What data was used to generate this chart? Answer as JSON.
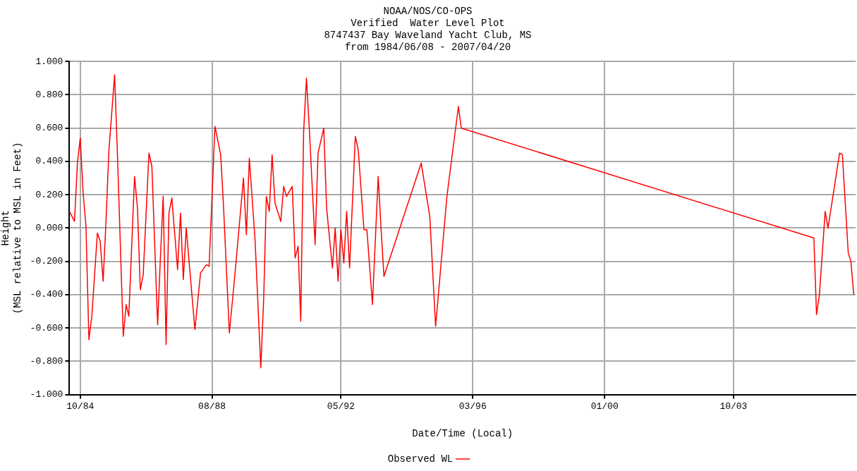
{
  "chart_data": {
    "type": "line",
    "title": "NOAA/NOS/CO-OPS\nVerified  Water Level Plot\n8747437 Bay Waveland Yacht Club, MS",
    "subtitle": "from 1984/06/08 - 2007/04/20",
    "xlabel": "Date/Time (Local)",
    "ylabel": "Height\n(MSL relative to MSL in Feet)",
    "x": [
      "1984-06-08",
      "1984-08",
      "1984-09",
      "1984-10",
      "1984-11",
      "1984-12",
      "1985-01",
      "1985-02",
      "1985-04",
      "1985-05",
      "1985-06",
      "1985-07",
      "1985-08",
      "1985-10",
      "1985-11",
      "1986-01",
      "1986-02",
      "1986-03",
      "1986-05",
      "1986-06",
      "1986-07",
      "1986-08",
      "1986-10",
      "1986-11",
      "1987-01",
      "1987-02",
      "1987-03",
      "1987-04",
      "1987-05",
      "1987-06",
      "1987-08",
      "1987-09",
      "1987-10",
      "1987-11",
      "1988-02",
      "1988-04",
      "1988-06",
      "1988-07",
      "1988-09",
      "1988-11",
      "1988-12",
      "1989-02",
      "1989-04",
      "1989-07",
      "1989-08",
      "1989-09",
      "1989-11",
      "1990-01",
      "1990-02",
      "1990-03",
      "1990-04",
      "1990-05",
      "1990-06",
      "1990-08",
      "1990-09",
      "1990-10",
      "1990-12",
      "1991-01",
      "1991-02",
      "1991-03",
      "1991-04",
      "1991-05",
      "1991-06",
      "1991-08",
      "1991-09",
      "1991-11",
      "1991-12",
      "1992-02",
      "1992-03",
      "1992-04",
      "1992-05",
      "1992-06",
      "1992-07",
      "1992-08",
      "1992-10",
      "1992-11",
      "1993-01",
      "1993-02",
      "1993-04",
      "1993-06",
      "1993-07",
      "1993-08",
      "1994-09",
      "1994-12",
      "1995-02",
      "1995-06",
      "1995-10",
      "1995-11",
      "2006-02",
      "2006-03",
      "2006-04",
      "2006-06",
      "2006-07",
      "2006-11",
      "2006-12",
      "2007-02",
      "2007-03",
      "2007-04"
    ],
    "series": [
      {
        "name": "Observed WL",
        "color": "#ff0000",
        "values": [
          0.1,
          0.04,
          0.39,
          0.54,
          0.21,
          0.01,
          -0.67,
          -0.53,
          -0.03,
          -0.08,
          -0.32,
          0.03,
          0.46,
          0.92,
          0.43,
          -0.65,
          -0.46,
          -0.53,
          0.31,
          0.12,
          -0.37,
          -0.28,
          0.45,
          0.37,
          -0.58,
          -0.16,
          0.19,
          -0.7,
          0.09,
          0.18,
          -0.25,
          0.09,
          -0.31,
          0.0,
          -0.61,
          -0.27,
          -0.22,
          -0.23,
          0.61,
          0.44,
          0.13,
          -0.63,
          -0.28,
          0.3,
          -0.04,
          0.42,
          -0.07,
          -0.84,
          -0.42,
          0.19,
          0.1,
          0.44,
          0.15,
          0.04,
          0.25,
          0.19,
          0.25,
          -0.18,
          -0.11,
          -0.56,
          0.58,
          0.9,
          0.59,
          -0.1,
          0.45,
          0.6,
          0.12,
          -0.24,
          0.0,
          -0.32,
          -0.01,
          -0.21,
          0.1,
          -0.24,
          0.55,
          0.47,
          -0.01,
          -0.01,
          -0.46,
          0.31,
          0.0,
          -0.29,
          0.39,
          0.07,
          -0.59,
          0.19,
          0.73,
          0.6,
          -0.06,
          -0.52,
          -0.4,
          0.1,
          0.0,
          0.45,
          0.44,
          -0.15,
          -0.2,
          -0.4
        ]
      }
    ],
    "xlim": [
      "1984-06-08",
      "2007-04-20"
    ],
    "xticks": [
      {
        "value": "1984-10",
        "label": "10/84"
      },
      {
        "value": "1988-08",
        "label": "08/88"
      },
      {
        "value": "1992-05",
        "label": "05/92"
      },
      {
        "value": "1996-03",
        "label": "03/96"
      },
      {
        "value": "2000-01",
        "label": "01/00"
      },
      {
        "value": "2003-10",
        "label": "10/03"
      }
    ],
    "ylim": [
      -1,
      1
    ],
    "yticks": [
      {
        "value": -1,
        "label": "-1.000"
      },
      {
        "value": -0.8,
        "label": "-0.800"
      },
      {
        "value": -0.6,
        "label": "-0.600"
      },
      {
        "value": -0.4,
        "label": "-0.400"
      },
      {
        "value": -0.2,
        "label": "-0.200"
      },
      {
        "value": 0,
        "label": "0.000"
      },
      {
        "value": 0.2,
        "label": "0.200"
      },
      {
        "value": 0.4,
        "label": "0.400"
      },
      {
        "value": 0.6,
        "label": "0.600"
      },
      {
        "value": 0.8,
        "label": "0.800"
      },
      {
        "value": 1,
        "label": "1.000"
      }
    ],
    "grid": true,
    "legend": "bottom",
    "marker": "none",
    "line_style": "solid"
  }
}
